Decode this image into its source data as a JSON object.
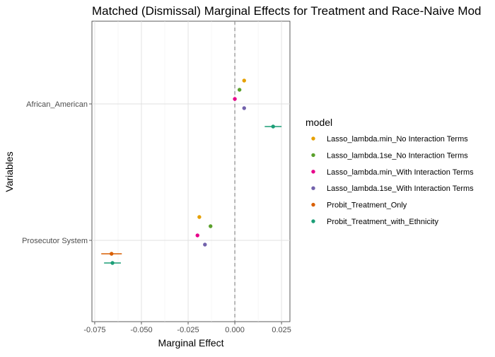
{
  "chart_data": {
    "type": "scatter",
    "title": "Matched (Dismissal) Marginal Effects for Treatment and Race-Naive Mod",
    "xlabel": "Marginal Effect",
    "ylabel": "Variables",
    "xlim": [
      -0.0765,
      0.0295
    ],
    "x_ticks": [
      -0.075,
      -0.05,
      -0.025,
      0.0,
      0.025
    ],
    "x_tick_labels": [
      "-0.075",
      "-0.050",
      "-0.025",
      "0.000",
      "0.025"
    ],
    "categories": [
      "African_American",
      "Prosecutor System"
    ],
    "reference_line": 0,
    "legend_title": "model",
    "legend_position": "right",
    "grid": true,
    "series": [
      {
        "name": "Lasso_lambda.min_No Interaction Terms",
        "color": "#E6A000",
        "points": [
          {
            "category": "African_American",
            "x": 0.005,
            "err": 0.0
          },
          {
            "category": "Prosecutor System",
            "x": -0.019,
            "err": 0.0
          }
        ]
      },
      {
        "name": "Lasso_lambda.1se_No Interaction Terms",
        "color": "#5AA02C",
        "points": [
          {
            "category": "African_American",
            "x": 0.0025,
            "err": 0.0
          },
          {
            "category": "Prosecutor System",
            "x": -0.013,
            "err": 0.0
          }
        ]
      },
      {
        "name": "Lasso_lambda.min_With Interaction Terms",
        "color": "#E7008A",
        "points": [
          {
            "category": "African_American",
            "x": 0.0,
            "err": 0.0
          },
          {
            "category": "Prosecutor System",
            "x": -0.02,
            "err": 0.0
          }
        ]
      },
      {
        "name": "Lasso_lambda.1se_With Interaction Terms",
        "color": "#7262AC",
        "points": [
          {
            "category": "African_American",
            "x": 0.005,
            "err": 0.0
          },
          {
            "category": "Prosecutor System",
            "x": -0.016,
            "err": 0.0
          }
        ]
      },
      {
        "name": "Probit_Treatment_Only",
        "color": "#D95F02",
        "points": [
          {
            "category": "Prosecutor System",
            "x": -0.066,
            "err": 0.0055
          }
        ]
      },
      {
        "name": "Probit_Treatment_with_Ethnicity",
        "color": "#1B9E77",
        "points": [
          {
            "category": "African_American",
            "x": 0.0205,
            "err": 0.0045
          },
          {
            "category": "Prosecutor System",
            "x": -0.0655,
            "err": 0.0045
          }
        ]
      }
    ]
  }
}
